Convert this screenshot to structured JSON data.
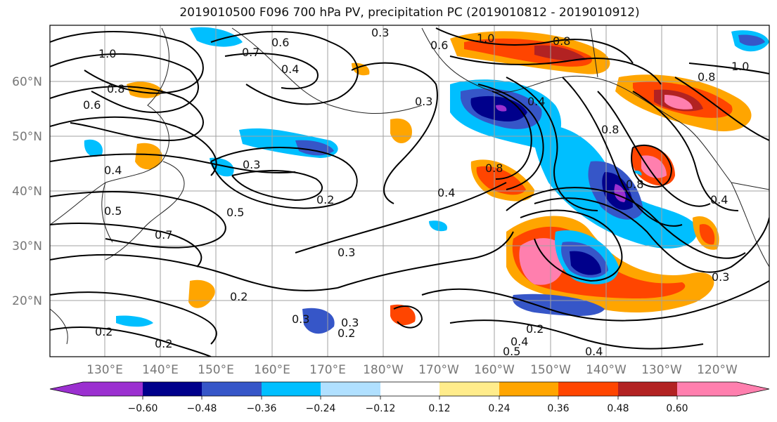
{
  "title": "2019010500 F096 700 hPa PV, precipitation PC (2019010812 - 2019010912)",
  "lat_labels": [
    "60°N",
    "50°N",
    "40°N",
    "30°N",
    "20°N"
  ],
  "lon_labels": [
    "130°E",
    "140°E",
    "150°E",
    "160°E",
    "170°E",
    "180°W",
    "170°W",
    "160°W",
    "150°W",
    "140°W",
    "130°W",
    "120°W"
  ],
  "colorbar": {
    "ticks": [
      "−0.60",
      "−0.48",
      "−0.36",
      "−0.24",
      "−0.12",
      "0.12",
      "0.24",
      "0.36",
      "0.48",
      "0.60"
    ],
    "colors": [
      "#9b30d0",
      "#00008b",
      "#3656c8",
      "#00bfff",
      "#b0e0ff",
      "#ffffff",
      "#ffec8b",
      "#ffa500",
      "#ff4500",
      "#b22222",
      "#ff7fae"
    ]
  },
  "contour_labels": [
    "0.6",
    "0.7",
    "1.0",
    "0.8",
    "0.6",
    "0.3",
    "0.4",
    "0.5",
    "0.7",
    "0.3",
    "0.2",
    "0.5",
    "0.3",
    "0.2",
    "0.3",
    "0.3",
    "0.2",
    "0.2",
    "0.2",
    "0.4",
    "1.0",
    "0.8",
    "0.8",
    "0.4",
    "0.8",
    "0.8",
    "0.3",
    "0.4",
    "0.2",
    "0.4",
    "0.5",
    "0.4",
    "0.3",
    "0.8",
    "1.0",
    "0.4",
    "0.6"
  ]
}
